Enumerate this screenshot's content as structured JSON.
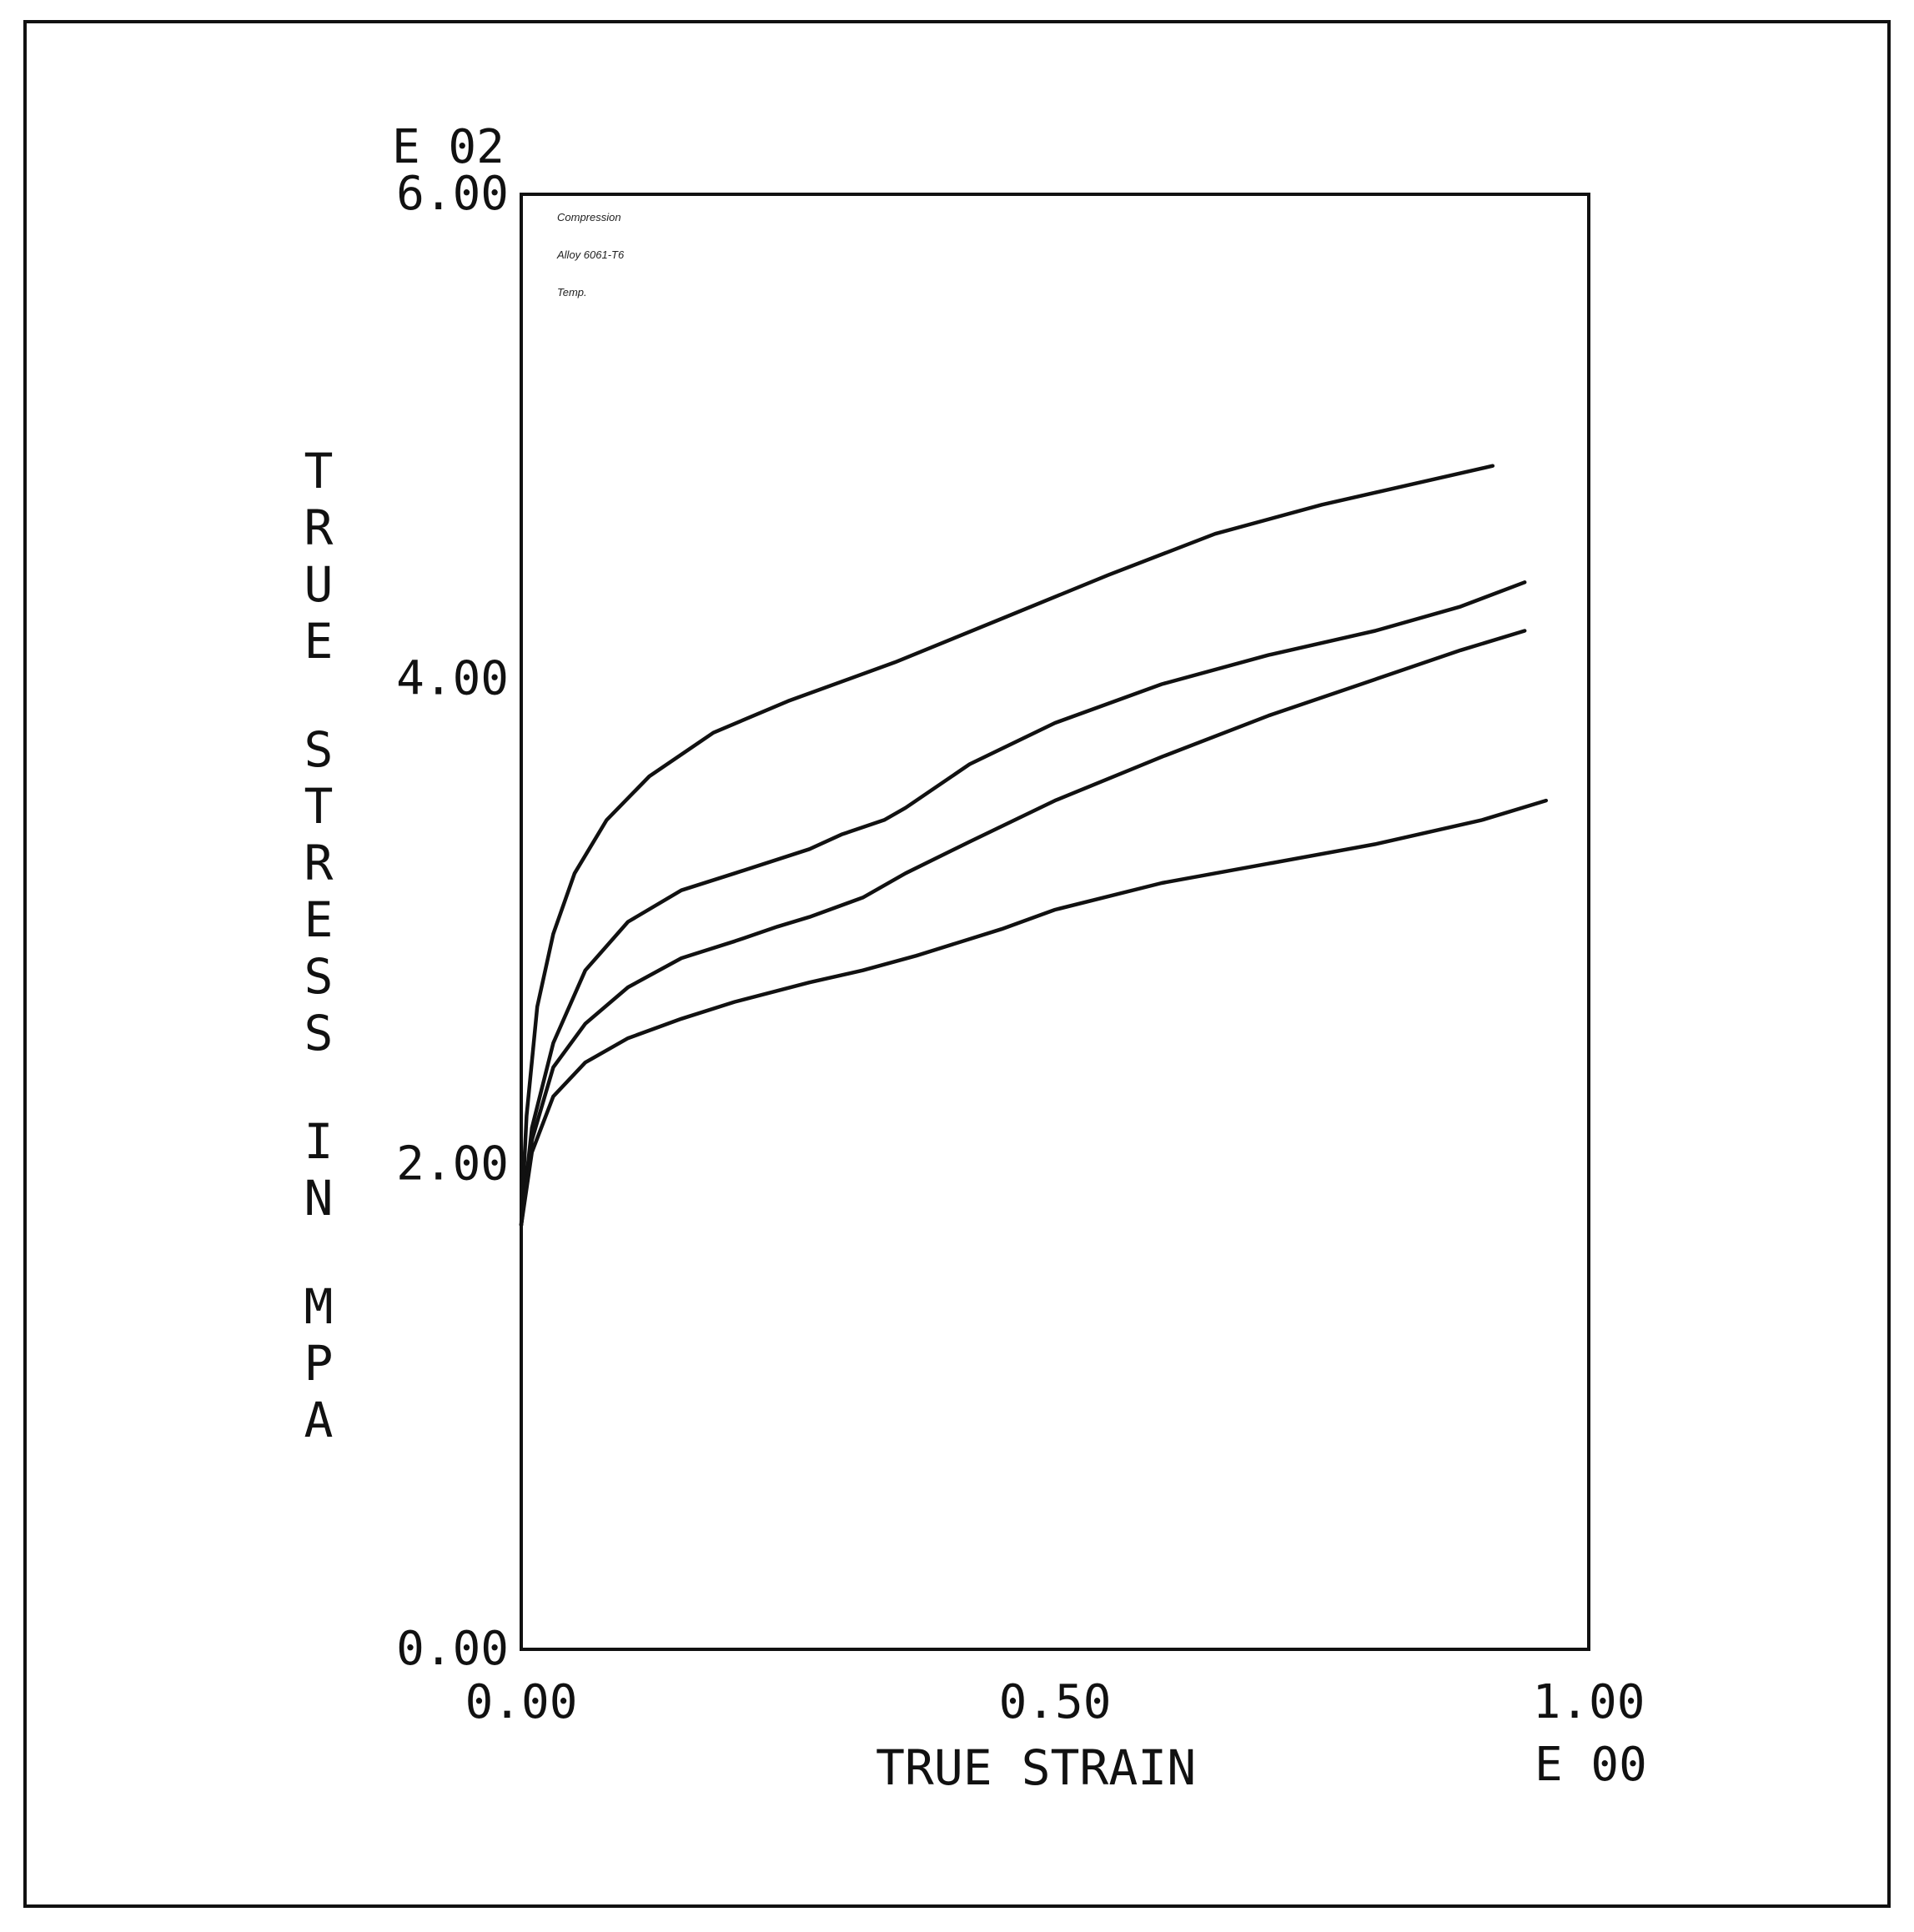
{
  "chart_data": {
    "type": "line",
    "xlabel": "TRUE STRAIN",
    "ylabel": "TRUE STRESS IN MPA",
    "x_exponent_label": "E 00",
    "y_exponent_label": "E 02",
    "xlim": [
      0.0,
      1.0
    ],
    "ylim": [
      0.0,
      6.0
    ],
    "x_ticks": [
      0.0,
      0.5,
      1.0
    ],
    "x_tick_labels": [
      "0.00",
      "0.50",
      "1.00"
    ],
    "y_ticks": [
      0.0,
      2.0,
      4.0,
      6.0
    ],
    "y_tick_labels": [
      "0.00",
      "2.00",
      "4.00",
      "6.00"
    ],
    "grid": false,
    "legend_text": [
      "Compression",
      "Alloy 6061-T6",
      "Temp."
    ],
    "series": [
      {
        "points": [
          [
            0.0,
            1.75
          ],
          [
            0.005,
            2.2
          ],
          [
            0.015,
            2.65
          ],
          [
            0.03,
            2.95
          ],
          [
            0.05,
            3.2
          ],
          [
            0.08,
            3.42
          ],
          [
            0.12,
            3.6
          ],
          [
            0.18,
            3.78
          ],
          [
            0.25,
            3.91
          ],
          [
            0.35,
            4.07
          ],
          [
            0.45,
            4.25
          ],
          [
            0.55,
            4.43
          ],
          [
            0.65,
            4.6
          ],
          [
            0.75,
            4.72
          ],
          [
            0.85,
            4.82
          ],
          [
            0.91,
            4.88
          ]
        ],
        "curve_label": "",
        "mid_label": ""
      },
      {
        "points": [
          [
            0.0,
            1.75
          ],
          [
            0.01,
            2.15
          ],
          [
            0.03,
            2.5
          ],
          [
            0.06,
            2.8
          ],
          [
            0.1,
            3.0
          ],
          [
            0.15,
            3.13
          ],
          [
            0.2,
            3.2
          ],
          [
            0.27,
            3.3
          ],
          [
            0.3,
            3.36
          ],
          [
            0.34,
            3.42
          ],
          [
            0.36,
            3.47
          ],
          [
            0.42,
            3.65
          ],
          [
            0.5,
            3.82
          ],
          [
            0.6,
            3.98
          ],
          [
            0.7,
            4.1
          ],
          [
            0.8,
            4.2
          ],
          [
            0.88,
            4.3
          ],
          [
            0.94,
            4.4
          ]
        ],
        "curve_label": "",
        "mid_label": ""
      },
      {
        "points": [
          [
            0.0,
            1.75
          ],
          [
            0.01,
            2.1
          ],
          [
            0.03,
            2.4
          ],
          [
            0.06,
            2.58
          ],
          [
            0.1,
            2.73
          ],
          [
            0.15,
            2.85
          ],
          [
            0.2,
            2.92
          ],
          [
            0.24,
            2.98
          ],
          [
            0.27,
            3.02
          ],
          [
            0.32,
            3.1
          ],
          [
            0.36,
            3.2
          ],
          [
            0.42,
            3.33
          ],
          [
            0.5,
            3.5
          ],
          [
            0.6,
            3.68
          ],
          [
            0.7,
            3.85
          ],
          [
            0.8,
            4.0
          ],
          [
            0.88,
            4.12
          ],
          [
            0.94,
            4.2
          ]
        ],
        "curve_label": "",
        "mid_label": ""
      },
      {
        "points": [
          [
            0.0,
            1.75
          ],
          [
            0.01,
            2.05
          ],
          [
            0.03,
            2.28
          ],
          [
            0.06,
            2.42
          ],
          [
            0.1,
            2.52
          ],
          [
            0.15,
            2.6
          ],
          [
            0.2,
            2.67
          ],
          [
            0.27,
            2.75
          ],
          [
            0.32,
            2.8
          ],
          [
            0.37,
            2.86
          ],
          [
            0.45,
            2.97
          ],
          [
            0.5,
            3.05
          ],
          [
            0.6,
            3.16
          ],
          [
            0.7,
            3.24
          ],
          [
            0.8,
            3.32
          ],
          [
            0.9,
            3.42
          ],
          [
            0.96,
            3.5
          ]
        ],
        "curve_label": "",
        "mid_label": ""
      }
    ]
  }
}
